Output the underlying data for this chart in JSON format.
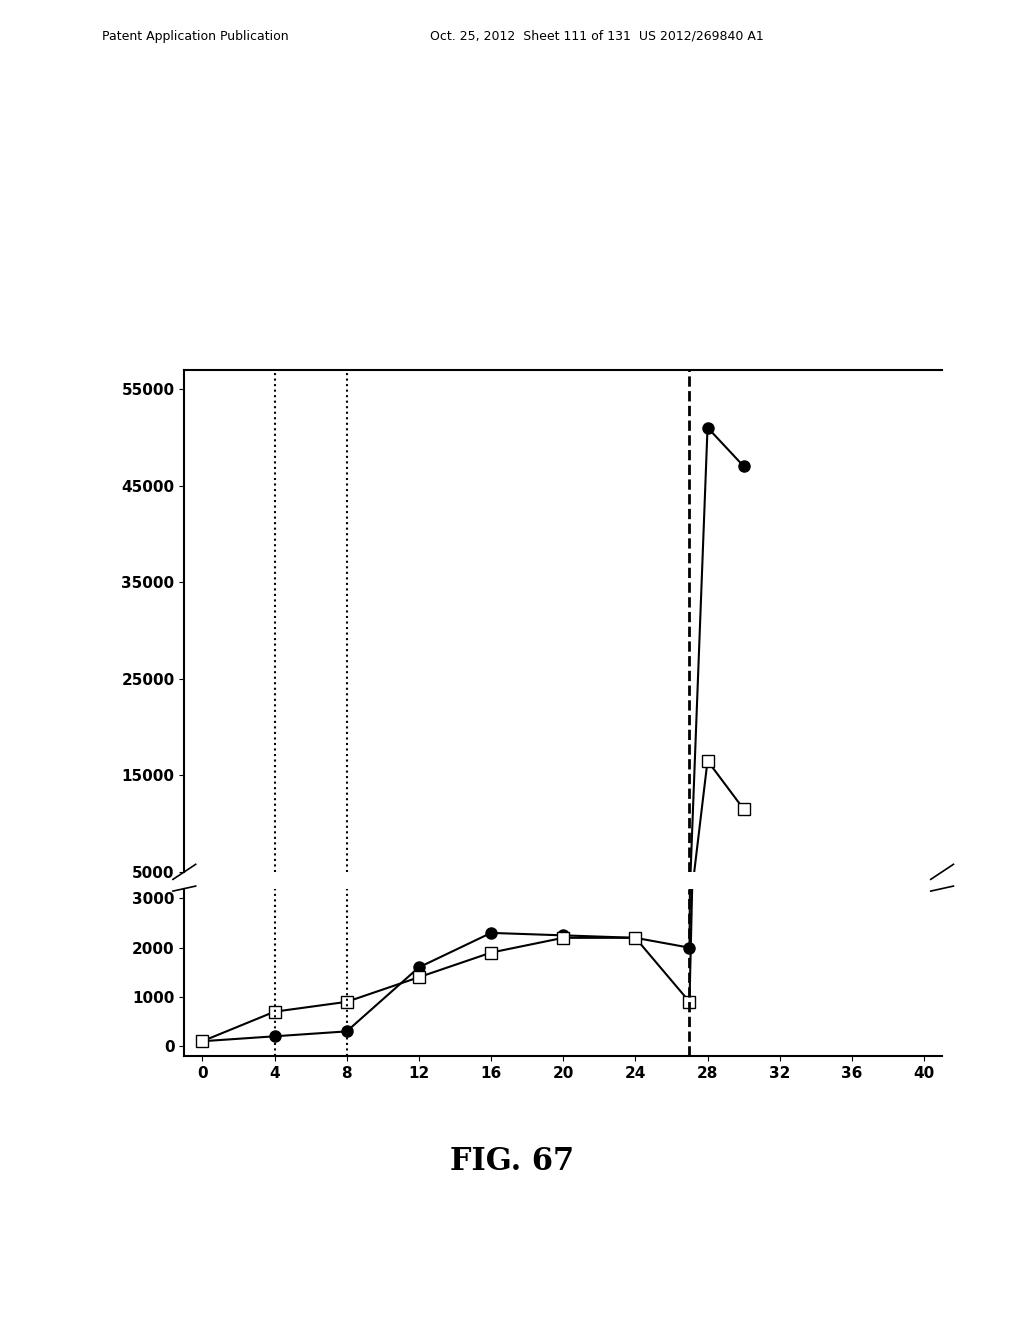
{
  "series1_x": [
    0,
    4,
    8,
    12,
    16,
    20,
    24,
    27,
    28,
    30
  ],
  "series1_y": [
    100,
    200,
    300,
    1600,
    2300,
    2250,
    2200,
    2000,
    51000,
    47000
  ],
  "series2_x": [
    0,
    4,
    8,
    12,
    16,
    20,
    24,
    27,
    28,
    30
  ],
  "series2_y": [
    100,
    700,
    900,
    1400,
    1900,
    2200,
    2200,
    900,
    16500,
    11500
  ],
  "vlines_dotted": [
    4,
    8
  ],
  "vlines_dashed": [
    27
  ],
  "xlabel_ticks": [
    0,
    4,
    8,
    12,
    16,
    20,
    24,
    28,
    32,
    36,
    40
  ],
  "yticks_bottom": [
    0,
    1000,
    2000,
    3000
  ],
  "yticks_top": [
    5000,
    15000,
    25000,
    35000,
    45000,
    55000
  ],
  "fig_title": "FIG. 67",
  "background_color": "#ffffff",
  "line_color": "#000000"
}
